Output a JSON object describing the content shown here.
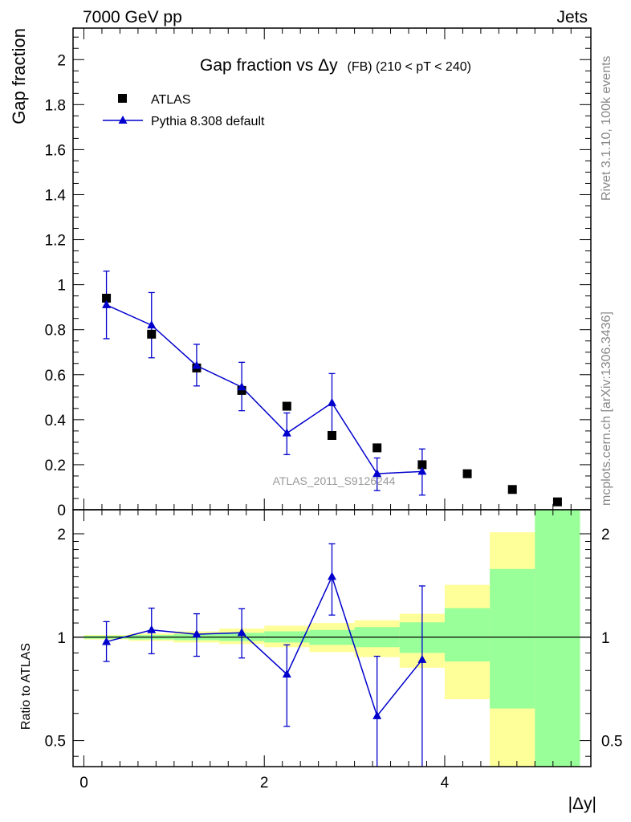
{
  "header": {
    "left": "7000 GeV pp",
    "right": "Jets"
  },
  "side_text": {
    "top": "Rivet 3.1.10,  100k events",
    "bottom": "mcplots.cern.ch [arXiv:1306.3436]"
  },
  "analysis_label": "ATLAS_2011_S9126244",
  "chart_data": [
    {
      "type": "scatter",
      "panel": "main",
      "title": "Gap fraction vsΔy (FB) (210 < pT < 240)",
      "title_parts": {
        "main": "Gap fraction vs",
        "delta": "Δy",
        "small": "(FB) (210 < pT < 240)"
      },
      "ylabel": "Gap fraction",
      "xlabel": "|Δy|",
      "xlim": [
        -0.12,
        5.62
      ],
      "ylim": [
        0,
        2.14
      ],
      "y_ticks": [
        0,
        0.2,
        0.4,
        0.6,
        0.8,
        1,
        1.2,
        1.4,
        1.6,
        1.8,
        2
      ],
      "y_tick_labels": [
        "0",
        "0.2",
        "0.4",
        "0.6",
        "0.8",
        "1",
        "1.2",
        "1.4",
        "1.6",
        "1.8",
        "2"
      ],
      "legend_position": "top-left",
      "series": [
        {
          "name": "ATLAS",
          "marker": "square",
          "color": "#000000",
          "x": [
            0.25,
            0.75,
            1.25,
            1.75,
            2.25,
            2.75,
            3.25,
            3.75,
            4.25,
            4.75,
            5.25
          ],
          "y": [
            0.94,
            0.78,
            0.63,
            0.53,
            0.46,
            0.33,
            0.275,
            0.2,
            0.16,
            0.09,
            0.035
          ]
        },
        {
          "name": "Pythia 8.308 default",
          "marker": "triangle",
          "color": "#0000cc",
          "x": [
            0.25,
            0.75,
            1.25,
            1.75,
            2.25,
            2.75,
            3.25,
            3.75
          ],
          "y": [
            0.91,
            0.82,
            0.64,
            0.545,
            0.34,
            0.475,
            0.16,
            0.17
          ],
          "yerr_low": [
            0.76,
            0.675,
            0.55,
            0.44,
            0.245,
            0.345,
            0.085,
            0.065
          ],
          "yerr_high": [
            1.06,
            0.965,
            0.735,
            0.655,
            0.43,
            0.605,
            0.23,
            0.27
          ]
        }
      ]
    },
    {
      "type": "line",
      "panel": "ratio",
      "ylabel": "Ratio to ATLAS",
      "xlabel": "|Δy|",
      "xlim": [
        -0.12,
        5.62
      ],
      "ylim": [
        0.42,
        2.35
      ],
      "log_y": true,
      "x_ticks": [
        0,
        2,
        4
      ],
      "x_tick_labels": [
        "0",
        "2",
        "4"
      ],
      "y_ticks": [
        0.5,
        1,
        2
      ],
      "y_tick_labels": [
        "0.5",
        "1",
        "2"
      ],
      "reference": 1,
      "bins": [
        [
          0,
          0.5
        ],
        [
          0.5,
          1
        ],
        [
          1,
          1.5
        ],
        [
          1.5,
          2
        ],
        [
          2,
          2.5
        ],
        [
          2.5,
          3
        ],
        [
          3,
          3.5
        ],
        [
          3.5,
          4
        ],
        [
          4,
          4.5
        ],
        [
          4.5,
          5
        ],
        [
          5,
          5.5
        ]
      ],
      "band_total": {
        "color": "#ffff99",
        "low": [
          0.985,
          0.975,
          0.965,
          0.955,
          0.935,
          0.905,
          0.875,
          0.815,
          0.66,
          0.42,
          0.42
        ],
        "high": [
          1.015,
          1.025,
          1.04,
          1.06,
          1.08,
          1.1,
          1.12,
          1.17,
          1.42,
          2.02,
          2.35
        ]
      },
      "band_stat": {
        "color": "#99ff99",
        "low": [
          0.99,
          0.985,
          0.98,
          0.975,
          0.965,
          0.95,
          0.935,
          0.9,
          0.85,
          0.62,
          0.42
        ],
        "high": [
          1.01,
          1.015,
          1.02,
          1.03,
          1.04,
          1.05,
          1.07,
          1.105,
          1.215,
          1.58,
          2.35
        ]
      },
      "series": [
        {
          "name": "Pythia 8.308 default",
          "color": "#0000cc",
          "x": [
            0.25,
            0.75,
            1.25,
            1.75,
            2.25,
            2.75,
            3.25,
            3.75
          ],
          "y": [
            0.97,
            1.05,
            1.02,
            1.03,
            0.78,
            1.5,
            0.59,
            0.86
          ],
          "yerr_low": [
            0.85,
            0.895,
            0.88,
            0.87,
            0.55,
            1.16,
            0.42,
            0.42
          ],
          "yerr_high": [
            1.11,
            1.215,
            1.17,
            1.21,
            0.95,
            1.87,
            0.88,
            1.41
          ]
        }
      ]
    }
  ]
}
